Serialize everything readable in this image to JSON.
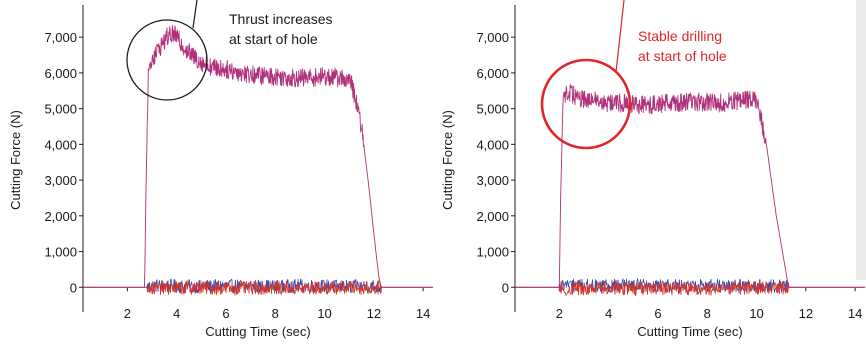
{
  "chart_data": [
    {
      "type": "line",
      "xlabel": "Cutting Time (sec)",
      "ylabel": "Cutting Force (N)",
      "xlim": [
        0.2,
        14.4
      ],
      "ylim": [
        -300,
        7900
      ],
      "x_ticks": [
        2,
        4,
        6,
        8,
        10,
        12,
        14
      ],
      "y_ticks": [
        0,
        1000,
        2000,
        3000,
        4000,
        5000,
        6000,
        7000
      ],
      "x_tick_labels": [
        "2",
        "4",
        "6",
        "8",
        "10",
        "12",
        "14"
      ],
      "y_tick_labels": [
        "0",
        "1,000",
        "2,000",
        "3,000",
        "4,000",
        "5,000",
        "6,000",
        "7,000"
      ],
      "series": [
        {
          "color": "#b0307a",
          "x": [
            0.2,
            2.7,
            2.75,
            2.85,
            3.0,
            3.3,
            3.6,
            3.9,
            4.2,
            4.6,
            5.0,
            5.5,
            6.0,
            7.0,
            8.0,
            9.0,
            10.0,
            10.8,
            11.1,
            11.5,
            11.8,
            12.0,
            12.2,
            12.3,
            14.4
          ],
          "y": [
            0,
            0,
            2500,
            6000,
            6400,
            6700,
            7000,
            7100,
            6800,
            6500,
            6300,
            6150,
            6100,
            5950,
            5900,
            5850,
            5900,
            5850,
            5700,
            4500,
            2800,
            1500,
            300,
            0,
            0
          ]
        },
        {
          "color": "#3a4aa8",
          "x": [
            0.2,
            2.8,
            3.0,
            4.0,
            5.0,
            6.0,
            7.0,
            8.0,
            9.0,
            10.0,
            11.0,
            12.0,
            12.3,
            14.4
          ],
          "y": [
            0,
            0,
            50,
            30,
            20,
            40,
            30,
            20,
            40,
            30,
            20,
            30,
            0,
            0
          ]
        },
        {
          "color": "#d8352a",
          "x": [
            0.2,
            2.8,
            3.0,
            4.0,
            5.0,
            6.0,
            7.0,
            8.0,
            9.0,
            10.0,
            11.0,
            12.0,
            12.3,
            14.4
          ],
          "y": [
            0,
            0,
            -30,
            -20,
            -10,
            -30,
            -20,
            -10,
            -30,
            -20,
            -10,
            -20,
            0,
            0
          ]
        }
      ],
      "annotation": {
        "text_lines": [
          "Thrust increases",
          "at start of hole"
        ],
        "color": "#000000"
      }
    },
    {
      "type": "line",
      "xlabel": "Cutting Time (sec)",
      "ylabel": "Cutting Force (N)",
      "xlim": [
        0.2,
        14.4
      ],
      "ylim": [
        -300,
        7900
      ],
      "x_ticks": [
        2,
        4,
        6,
        8,
        10,
        12,
        14
      ],
      "y_ticks": [
        0,
        1000,
        2000,
        3000,
        4000,
        5000,
        6000,
        7000
      ],
      "x_tick_labels": [
        "2",
        "4",
        "6",
        "8",
        "10",
        "12",
        "14"
      ],
      "y_tick_labels": [
        "0",
        "1,000",
        "2,000",
        "3,000",
        "4,000",
        "5,000",
        "6,000",
        "7,000"
      ],
      "series": [
        {
          "color": "#b0307a",
          "x": [
            0.2,
            2.0,
            2.05,
            2.15,
            2.3,
            2.8,
            3.5,
            4.5,
            5.5,
            6.5,
            7.5,
            8.5,
            9.5,
            10.0,
            10.4,
            10.6,
            10.8,
            11.0,
            11.2,
            11.3,
            14.4
          ],
          "y": [
            0,
            0,
            2500,
            5300,
            5500,
            5300,
            5200,
            5150,
            5100,
            5150,
            5200,
            5150,
            5250,
            5250,
            4000,
            3000,
            2000,
            1200,
            400,
            0,
            0
          ]
        },
        {
          "color": "#3a4aa8",
          "x": [
            0.2,
            2.0,
            2.2,
            3.0,
            4.0,
            5.0,
            6.0,
            7.0,
            8.0,
            9.0,
            10.0,
            11.0,
            11.3,
            14.4
          ],
          "y": [
            0,
            0,
            50,
            40,
            30,
            60,
            40,
            30,
            50,
            30,
            40,
            30,
            0,
            0
          ]
        },
        {
          "color": "#d8352a",
          "x": [
            0.2,
            2.0,
            2.2,
            3.0,
            4.0,
            5.0,
            6.0,
            7.0,
            8.0,
            9.0,
            10.0,
            11.0,
            11.3,
            14.4
          ],
          "y": [
            0,
            0,
            -40,
            -30,
            -20,
            -40,
            -30,
            -20,
            -40,
            -30,
            -20,
            -30,
            0,
            0
          ]
        }
      ],
      "annotation": {
        "text_lines": [
          "Stable drilling",
          "at start of hole"
        ],
        "color": "#e0252b"
      }
    }
  ]
}
